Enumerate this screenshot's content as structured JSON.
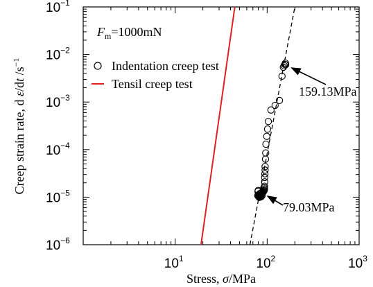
{
  "chart_data": {
    "type": "scatter",
    "x_scale": "log",
    "y_scale": "log",
    "xlim": [
      1,
      1000
    ],
    "ylim": [
      1e-06,
      0.1
    ],
    "xlabel_parts": [
      "Stress, ",
      "σ",
      "/MPa"
    ],
    "ylabel_parts": [
      "Creep strain rate, d ",
      "ε",
      "/d",
      "t",
      " /s",
      "−1"
    ],
    "x_ticks": [
      {
        "value": 10,
        "base": "10",
        "exp": "1"
      },
      {
        "value": 100,
        "base": "10",
        "exp": "2"
      },
      {
        "value": 1000,
        "base": "10",
        "exp": "3"
      }
    ],
    "y_ticks": [
      {
        "value": 1e-06,
        "base": "10",
        "exp": "−6"
      },
      {
        "value": 1e-05,
        "base": "10",
        "exp": "−5"
      },
      {
        "value": 0.0001,
        "base": "10",
        "exp": "−4"
      },
      {
        "value": 0.001,
        "base": "10",
        "exp": "−3"
      },
      {
        "value": 0.01,
        "base": "10",
        "exp": "−2"
      },
      {
        "value": 0.1,
        "base": "10",
        "exp": "−1"
      }
    ],
    "condition_label": {
      "symbol": "F",
      "sub": "m",
      "rest": "=1000mN"
    },
    "legend": {
      "position": "top-left",
      "entries": [
        {
          "label": "Indentation creep test",
          "marker": "circle",
          "color": "#000000"
        },
        {
          "label": "Tensil creep test",
          "marker": "line",
          "color": "#e02020"
        }
      ]
    },
    "series": [
      {
        "name": "Indentation creep test",
        "marker": "open-circle",
        "points": [
          [
            79,
            1.08e-05
          ],
          [
            80,
            1.05e-05
          ],
          [
            80.5,
            1.12e-05
          ],
          [
            81,
            1.06e-05
          ],
          [
            81.5,
            1.15e-05
          ],
          [
            82,
            1.09e-05
          ],
          [
            82.5,
            1.04e-05
          ],
          [
            83,
            1.18e-05
          ],
          [
            83.5,
            1.11e-05
          ],
          [
            84,
            1.07e-05
          ],
          [
            84.5,
            1.21e-05
          ],
          [
            85,
            1.13e-05
          ],
          [
            85.5,
            1.16e-05
          ],
          [
            86,
            1.19e-05
          ],
          [
            86.5,
            1.12e-05
          ],
          [
            87,
            1.24e-05
          ],
          [
            87.5,
            1.17e-05
          ],
          [
            88,
            1.21e-05
          ],
          [
            88.5,
            1.26e-05
          ],
          [
            89,
            1.28e-05
          ],
          [
            79.5,
            1.32e-05
          ],
          [
            80,
            1.38e-05
          ],
          [
            81,
            1.02e-05
          ],
          [
            82,
            9.9e-06
          ],
          [
            84,
            1e-05
          ],
          [
            86,
            1.02e-05
          ],
          [
            88,
            1.08e-05
          ],
          [
            90,
            1.25e-05
          ],
          [
            91,
            1.3e-05
          ],
          [
            92,
            1.35e-05
          ],
          [
            93,
            1.4e-05
          ],
          [
            93.5,
            1.48e-05
          ],
          [
            93,
            1.58e-05
          ],
          [
            93.5,
            1.7e-05
          ],
          [
            94,
            2.1e-05
          ],
          [
            94,
            2.6e-05
          ],
          [
            94.5,
            3.1e-05
          ],
          [
            95,
            3.7e-05
          ],
          [
            95,
            4.4e-05
          ],
          [
            96,
            6.3e-05
          ],
          [
            96.5,
            8.5e-05
          ],
          [
            97,
            0.00013
          ],
          [
            99,
            0.00019
          ],
          [
            101,
            0.00027
          ],
          [
            103,
            0.00039
          ],
          [
            110,
            0.00068
          ],
          [
            122,
            0.00085
          ],
          [
            136,
            0.00108
          ],
          [
            145,
            0.0035
          ],
          [
            150,
            0.0054
          ],
          [
            153,
            0.0058
          ],
          [
            156,
            0.0062
          ],
          [
            158,
            0.0066
          ],
          [
            159,
            0.0061
          ]
        ]
      },
      {
        "name": "Tensil creep test",
        "line": true,
        "color": "#e02020",
        "points": [
          [
            19.1,
            1e-06
          ],
          [
            44.5,
            0.1
          ]
        ]
      },
      {
        "name": "fit",
        "line": true,
        "dash": true,
        "color": "#000000",
        "points": [
          [
            65,
            1e-06
          ],
          [
            200,
            0.1
          ]
        ]
      }
    ],
    "annotations": [
      {
        "text": "159.13MPa",
        "arrow_to": [
          158,
          0.0064
        ]
      },
      {
        "text": "79.03MPa",
        "arrow_to": [
          88,
          1.2e-05
        ]
      }
    ]
  }
}
